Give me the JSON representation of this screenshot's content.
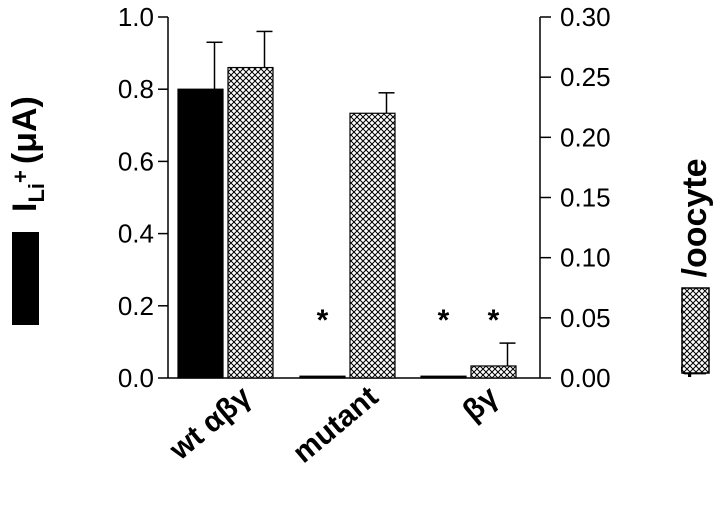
{
  "chart_data": {
    "type": "bar",
    "categories": [
      "wt αβγ",
      "mutant",
      "βγ"
    ],
    "series": [
      {
        "axis": "left",
        "color": "#000000",
        "pattern": "solid",
        "values": [
          0.8,
          0.005,
          0.005
        ],
        "errors": [
          0.13,
          0,
          0
        ],
        "significance": [
          "",
          "*",
          "*"
        ]
      },
      {
        "axis": "right",
        "color": "#000000",
        "pattern": "crosshatch",
        "values": [
          0.258,
          0.22,
          0.01
        ],
        "errors": [
          0.03,
          0.017,
          0.019
        ],
        "significance": [
          "",
          "",
          "*"
        ]
      }
    ],
    "left_axis": {
      "label_main": "I",
      "label_sub": "Li",
      "label_sup": "+",
      "label_unit": "(μA)",
      "ylim": [
        0,
        1.0
      ],
      "ticks": [
        0.0,
        0.2,
        0.4,
        0.6,
        0.8,
        1.0
      ],
      "tick_labels": [
        "0.0",
        "0.2",
        "0.4",
        "0.6",
        "0.8",
        "1.0"
      ]
    },
    "right_axis": {
      "label": "fmols /oocyte",
      "ylim": [
        0,
        0.3
      ],
      "ticks": [
        0.0,
        0.05,
        0.1,
        0.15,
        0.2,
        0.25,
        0.3
      ],
      "tick_labels": [
        "0.00",
        "0.05",
        "0.10",
        "0.15",
        "0.20",
        "0.25",
        "0.30"
      ]
    },
    "grid": false
  }
}
